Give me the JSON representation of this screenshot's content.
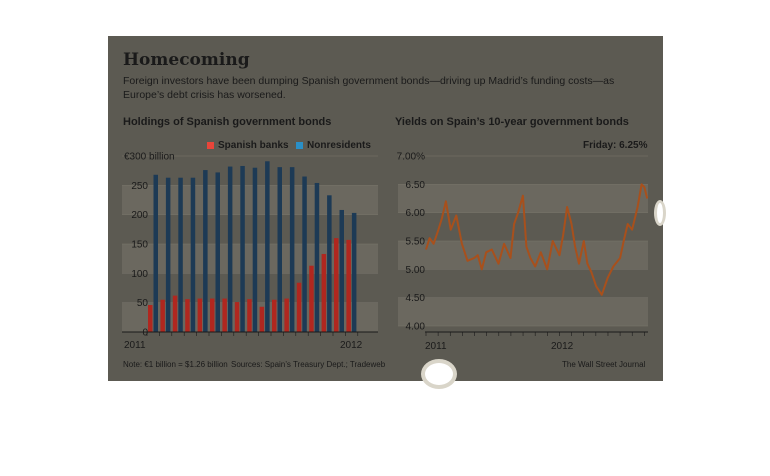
{
  "headline": "Homecoming",
  "deck": "Foreign investors have been dumping Spanish government bonds—driving up Madrid’s funding costs—as Europe’s debt crisis has worsened.",
  "footer": {
    "note": "Note: €1 billion = $1.26 billion",
    "sources": "Sources: Spain’s Treasury Dept.; Tradeweb",
    "credit": "The Wall Street Journal"
  },
  "colors": {
    "spanish_banks": "#b0271f",
    "nonresidents": "#1d3a55",
    "yield_line": "#a8501c"
  },
  "chart_data": [
    {
      "type": "bar",
      "title": "Holdings of Spanish government bonds",
      "yunit_label": "€300 billion",
      "ylim": [
        0,
        300
      ],
      "yticks": [
        0,
        50,
        100,
        150,
        200,
        250,
        300
      ],
      "ytick_labels": [
        "0",
        "50",
        "100",
        "150",
        "200",
        "250",
        "€300 billion"
      ],
      "grid": true,
      "legend_position": "top",
      "x_tick_labels": [
        "2011",
        "2012"
      ],
      "categories": [
        "Jan 2011",
        "Feb 2011",
        "Mar 2011",
        "Apr 2011",
        "May 2011",
        "Jun 2011",
        "Jul 2011",
        "Aug 2011",
        "Sep 2011",
        "Oct 2011",
        "Nov 2011",
        "Dec 2011",
        "Jan 2012",
        "Feb 2012",
        "Mar 2012",
        "Apr 2012",
        "May 2012"
      ],
      "series": [
        {
          "name": "Spanish banks",
          "values": [
            46,
            55,
            62,
            56,
            57,
            57,
            57,
            51,
            56,
            43,
            55,
            57,
            84,
            113,
            133,
            160,
            157
          ]
        },
        {
          "name": "Nonresidents",
          "values": [
            268,
            263,
            263,
            263,
            276,
            272,
            282,
            283,
            280,
            291,
            281,
            281,
            265,
            254,
            233,
            208,
            203
          ]
        }
      ]
    },
    {
      "type": "line",
      "title": "Yields on Spain’s 10-year government bonds",
      "annotation": "Friday: 6.25%",
      "ylim": [
        4.0,
        7.0
      ],
      "yticks": [
        4.0,
        4.5,
        5.0,
        5.5,
        6.0,
        6.5,
        7.0
      ],
      "ytick_labels": [
        "4.00",
        "4.50",
        "5.00",
        "5.50",
        "6.00",
        "6.50",
        "7.00%"
      ],
      "grid": true,
      "x_tick_labels": [
        "2011",
        "2012"
      ],
      "x_range": [
        "2010-12",
        "2012-06"
      ],
      "series": [
        {
          "x": [
            "2010-12-01",
            "2010-12-10",
            "2010-12-20",
            "2011-01-01",
            "2011-01-10",
            "2011-01-20",
            "2011-02-01",
            "2011-02-15",
            "2011-03-01",
            "2011-03-15",
            "2011-04-01",
            "2011-04-10",
            "2011-04-20",
            "2011-05-01",
            "2011-05-15",
            "2011-06-01",
            "2011-06-15",
            "2011-07-01",
            "2011-07-10",
            "2011-07-20",
            "2011-08-01",
            "2011-08-10",
            "2011-08-20",
            "2011-09-01",
            "2011-09-15",
            "2011-10-01",
            "2011-10-15",
            "2011-11-01",
            "2011-11-10",
            "2011-11-20",
            "2011-12-01",
            "2011-12-10",
            "2011-12-20",
            "2012-01-01",
            "2012-01-10",
            "2012-01-20",
            "2012-02-01",
            "2012-02-15",
            "2012-03-01",
            "2012-03-15",
            "2012-04-01",
            "2012-04-10",
            "2012-04-20",
            "2012-05-01",
            "2012-05-15",
            "2012-05-25",
            "2012-06-01",
            "2012-06-08"
          ],
          "values": [
            5.35,
            5.55,
            5.45,
            5.7,
            5.9,
            6.2,
            5.7,
            5.95,
            5.45,
            5.15,
            5.2,
            5.25,
            5.0,
            5.3,
            5.35,
            5.1,
            5.45,
            5.2,
            5.8,
            6.0,
            6.3,
            5.4,
            5.2,
            5.05,
            5.3,
            5.0,
            5.5,
            5.25,
            5.6,
            6.1,
            5.8,
            5.4,
            5.1,
            5.5,
            5.1,
            4.95,
            4.7,
            4.55,
            4.85,
            5.05,
            5.2,
            5.5,
            5.8,
            5.7,
            6.1,
            6.5,
            6.45,
            6.25
          ]
        }
      ]
    }
  ]
}
